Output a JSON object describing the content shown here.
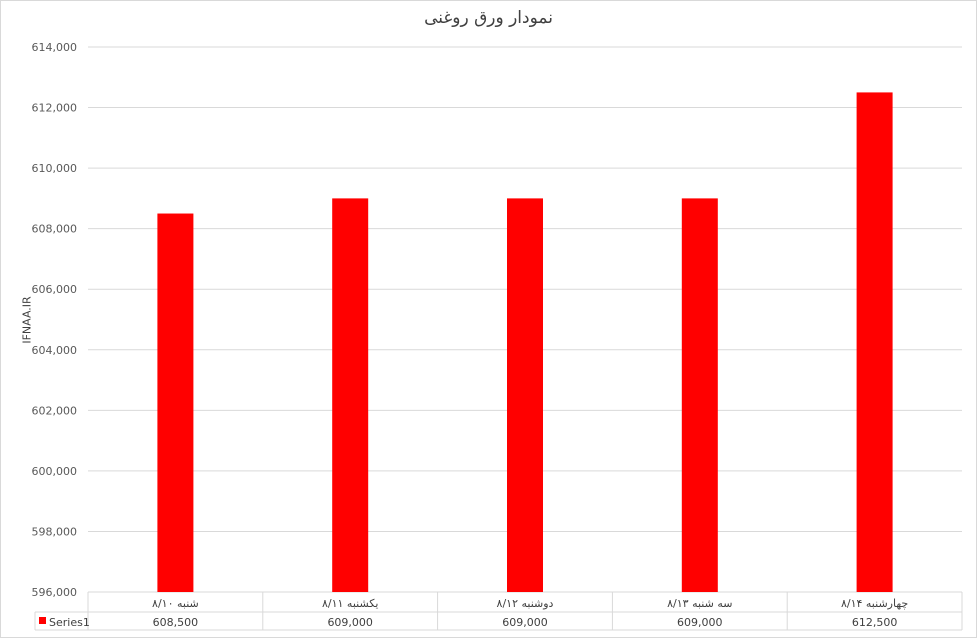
{
  "chart_data": {
    "type": "bar",
    "title": "نمودار ورق روغنی",
    "ylabel": "IFNAA.IR",
    "xlabel": "",
    "categories": [
      "شنبه ۸/۱۰",
      "یکشنبه ۸/۱۱",
      "دوشنبه ۸/۱۲",
      "سه شنبه ۸/۱۳",
      "چهارشنبه ۸/۱۴"
    ],
    "series": [
      {
        "name": "Series1",
        "values": [
          608500,
          609000,
          609000,
          609000,
          612500
        ],
        "color": "#ff0000"
      }
    ],
    "value_labels": [
      "608,500",
      "609,000",
      "609,000",
      "609,000",
      "612,500"
    ],
    "ylim": [
      596000,
      614000
    ],
    "yticks": [
      "596,000",
      "598,000",
      "600,000",
      "602,000",
      "604,000",
      "606,000",
      "608,000",
      "610,000",
      "612,000",
      "614,000"
    ],
    "grid": true,
    "legend": "data-table",
    "colors": {
      "gridline": "#d9d9d9",
      "text": "#595959"
    }
  }
}
